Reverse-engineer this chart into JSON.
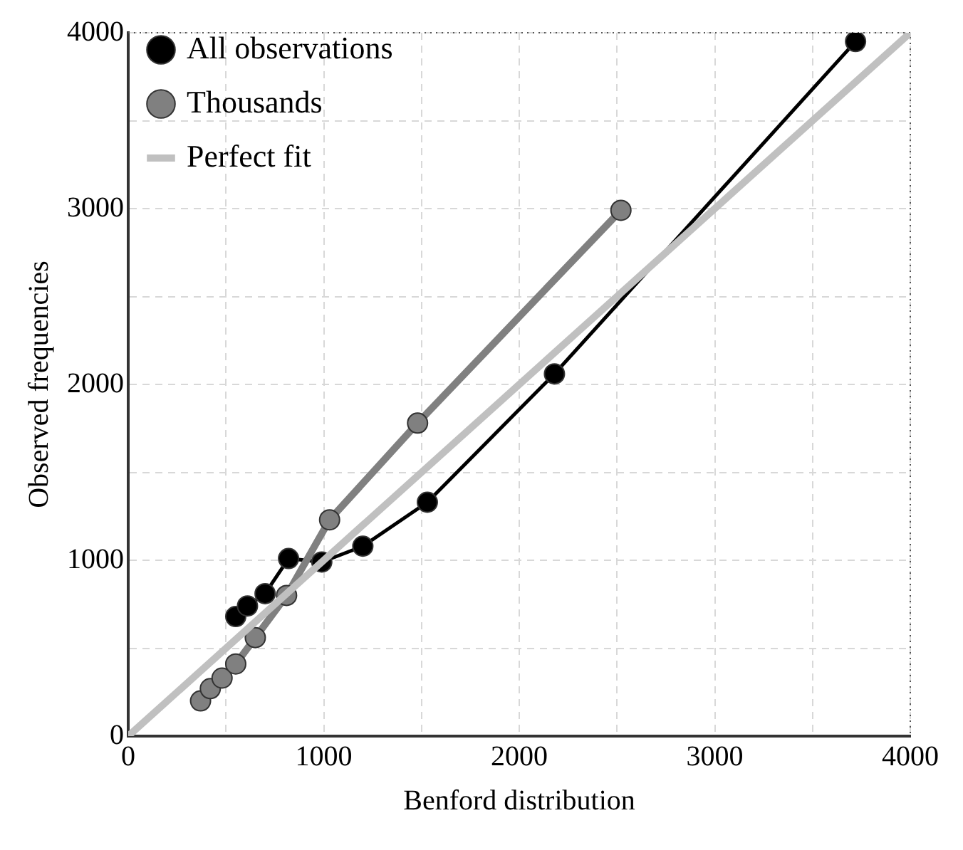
{
  "chart_data": {
    "type": "line",
    "xlabel": "Benford distribution",
    "ylabel": "Observed frequencies",
    "xlim": [
      0,
      4000
    ],
    "ylim": [
      0,
      4000
    ],
    "xticks": [
      0,
      {
        "value": 500,
        "label": null
      },
      1000,
      {
        "value": 1500,
        "label": null
      },
      2000,
      {
        "value": 2500,
        "label": null
      },
      3000,
      {
        "value": 3500,
        "label": null
      },
      4000
    ],
    "yticks": [
      0,
      {
        "value": 500,
        "label": null
      },
      1000,
      {
        "value": 1500,
        "label": null
      },
      2000,
      {
        "value": 2500,
        "label": null
      },
      3000,
      {
        "value": 3500,
        "label": null
      },
      4000
    ],
    "grid": true,
    "legend": "top left",
    "marker": "circle",
    "line_style": "solid",
    "series": [
      {
        "name": "All observations",
        "color": "#000000",
        "x": [
          550,
          610,
          700,
          820,
          990,
          1200,
          1530,
          2180,
          3720
        ],
        "values": [
          680,
          740,
          810,
          1010,
          990,
          1080,
          1330,
          2060,
          3950
        ]
      },
      {
        "name": "Thousands",
        "color": "#808080",
        "x": [
          370,
          420,
          480,
          550,
          650,
          810,
          1030,
          1480,
          2520
        ],
        "values": [
          200,
          270,
          330,
          410,
          560,
          800,
          1230,
          1780,
          2990
        ]
      },
      {
        "name": "Perfect fit",
        "color": "#c0c0c0",
        "marker": "none",
        "x": [
          0,
          4000
        ],
        "values": [
          0,
          4000
        ]
      }
    ]
  }
}
